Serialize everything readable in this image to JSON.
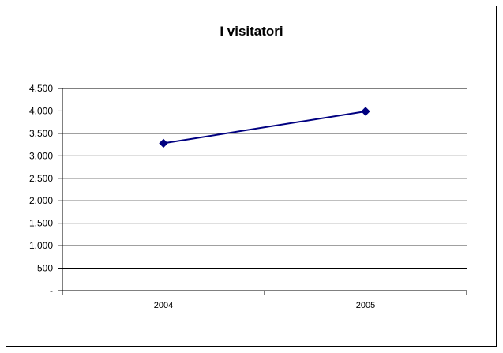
{
  "chart_data": {
    "type": "line",
    "title": "I visitatori",
    "xlabel": "",
    "ylabel": "",
    "categories": [
      "2004",
      "2005"
    ],
    "series": [
      {
        "values": [
          3280,
          3990
        ],
        "color": "#000080",
        "marker": "diamond"
      }
    ],
    "ylim": [
      0,
      4500
    ],
    "yticks": [
      0,
      500,
      1000,
      1500,
      2000,
      2500,
      3000,
      3500,
      4000,
      4500
    ],
    "ytick_labels": [
      "-",
      "500",
      "1.000",
      "1.500",
      "2.000",
      "2.500",
      "3.000",
      "3.500",
      "4.000",
      "4.500"
    ],
    "grid": true,
    "legend": "none"
  }
}
